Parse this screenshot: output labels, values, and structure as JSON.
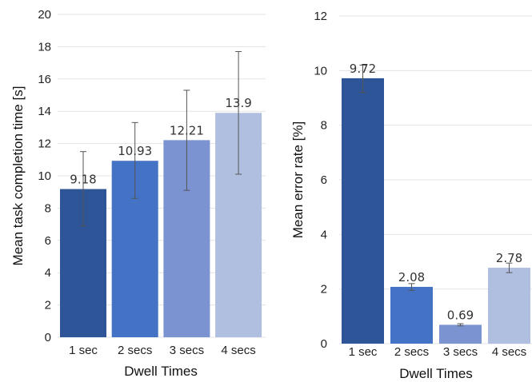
{
  "chart_data": [
    {
      "type": "bar",
      "categories": [
        "1 sec",
        "2 secs",
        "3 secs",
        "4 secs"
      ],
      "values": [
        9.18,
        10.93,
        12.21,
        13.9
      ],
      "data_labels": [
        "9.18",
        "10.93",
        "12.21",
        "13.9"
      ],
      "error_bars": [
        [
          6.9,
          11.5
        ],
        [
          8.6,
          13.3
        ],
        [
          9.1,
          15.3
        ],
        [
          10.1,
          17.7
        ]
      ],
      "colors": [
        "#2e5597",
        "#4472c4",
        "#7b93d1",
        "#b0bfe0"
      ],
      "xlabel": "Dwell Times",
      "ylabel": "Mean task completion time [s]",
      "ylim": [
        0,
        20
      ],
      "yticks": [
        0,
        2,
        4,
        6,
        8,
        10,
        12,
        14,
        16,
        18,
        20
      ],
      "grid": true
    },
    {
      "type": "bar",
      "categories": [
        "1 sec",
        "2 secs",
        "3 secs",
        "4 secs"
      ],
      "values": [
        9.72,
        2.08,
        0.69,
        2.78
      ],
      "data_labels": [
        "9.72",
        "2.08",
        "0.69",
        "2.78"
      ],
      "error_bars": [
        [
          9.2,
          10.2
        ],
        [
          1.95,
          2.2
        ],
        [
          0.65,
          0.73
        ],
        [
          2.6,
          2.95
        ]
      ],
      "colors": [
        "#2e5597",
        "#4472c4",
        "#7b93d1",
        "#b0bfe0"
      ],
      "xlabel": "Dwell Times",
      "ylabel": "Mean error rate [%]",
      "ylim": [
        0,
        12
      ],
      "yticks": [
        0,
        2,
        4,
        6,
        8,
        10,
        12
      ],
      "grid": true
    }
  ]
}
